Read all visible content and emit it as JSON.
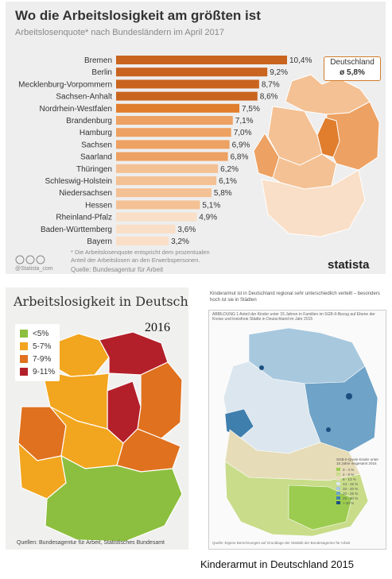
{
  "top": {
    "title": "Wo die Arbeitslosigkeit am größten ist",
    "subtitle": "Arbeitslosenquote* nach Bundesländern im April 2017",
    "germany_box_label": "Deutschland",
    "germany_box_value": "ø 5,8%",
    "footnote": "* Die Arbeitslosenquote entspricht dem prozentualen Anteil der Arbeitslosen an den Erwerbspersonen.",
    "source": "Quelle: Bundesagentur für Arbeit",
    "credit": "@Statista_com",
    "logo": "statista"
  },
  "chart_data": {
    "type": "bar",
    "orientation": "horizontal",
    "title": "Wo die Arbeitslosigkeit am größten ist",
    "subtitle": "Arbeitslosenquote* nach Bundesländern im April 2017",
    "categories": [
      "Bremen",
      "Berlin",
      "Mecklenburg-Vorpommern",
      "Sachsen-Anhalt",
      "Nordrhein-Westfalen",
      "Brandenburg",
      "Hamburg",
      "Sachsen",
      "Saarland",
      "Thüringen",
      "Schleswig-Holstein",
      "Niedersachsen",
      "Hessen",
      "Rheinland-Pfalz",
      "Baden-Württemberg",
      "Bayern"
    ],
    "values": [
      10.4,
      9.2,
      8.7,
      8.6,
      7.5,
      7.1,
      7.0,
      6.9,
      6.8,
      6.2,
      6.1,
      5.8,
      5.1,
      4.9,
      3.6,
      3.2
    ],
    "value_labels": [
      "10,4%",
      "9,2%",
      "8,7%",
      "8,6%",
      "7,5%",
      "7,1%",
      "7,0%",
      "6,9%",
      "6,8%",
      "6,2%",
      "6,1%",
      "5,8%",
      "5,1%",
      "4,9%",
      "3,6%",
      "3,2%"
    ],
    "xlim": [
      0,
      10.4
    ],
    "colors": {
      "darkest": "#c9641f",
      "dark": "#e07e2e",
      "mid": "#eda162",
      "light": "#f4c194",
      "lightest": "#f9dfc7"
    }
  },
  "bottom_left": {
    "title": "Arbeitslosigkeit in Deutschland",
    "year": "2016",
    "legend": [
      {
        "label": "<5%",
        "color": "#8cbf3f"
      },
      {
        "label": "5-7%",
        "color": "#f2a51e"
      },
      {
        "label": "7-9%",
        "color": "#e0711f"
      },
      {
        "label": "9-11%",
        "color": "#b3202a"
      }
    ],
    "source": "Quellen: Bundesagentur für Arbeit, Statistisches Bundesamt"
  },
  "bottom_right": {
    "headline": "Kinderarmut ist in Deutschland regional sehr unterschiedlich verteilt – besonders hoch ist sie in Städten",
    "subtitle": "ABBILDUNG 1 Anteil der Kinder unter 15 Jahren in Familien im SGB-II-Bezug auf Ebene der Kreise und kreisfreie Städte in Deutschland im Jahr 2015",
    "legend_title": "SGB-II-Quote Kinder unter 15 Jahre insgesamt 2015",
    "legend": [
      {
        "label": "0 - 4 %",
        "color": "#9ccc4f"
      },
      {
        "label": "4 - 8 %",
        "color": "#c8dc8a"
      },
      {
        "label": "8 - 13 %",
        "color": "#e6dcb8"
      },
      {
        "label": "13 - 15 %",
        "color": "#dbe6ee"
      },
      {
        "label": "15 - 20 %",
        "color": "#a8c8de"
      },
      {
        "label": "20 - 25 %",
        "color": "#6fa3c7"
      },
      {
        "label": "25 - 30 %",
        "color": "#3f7fae"
      },
      {
        "label": "> 30 %",
        "color": "#1a4f80"
      }
    ],
    "footer": "Quelle: Eigene Berechnungen auf Grundlage der Statistik der Bundesagentur für Arbeit"
  },
  "caption": "Kinderarmut in Deutschland 2015"
}
